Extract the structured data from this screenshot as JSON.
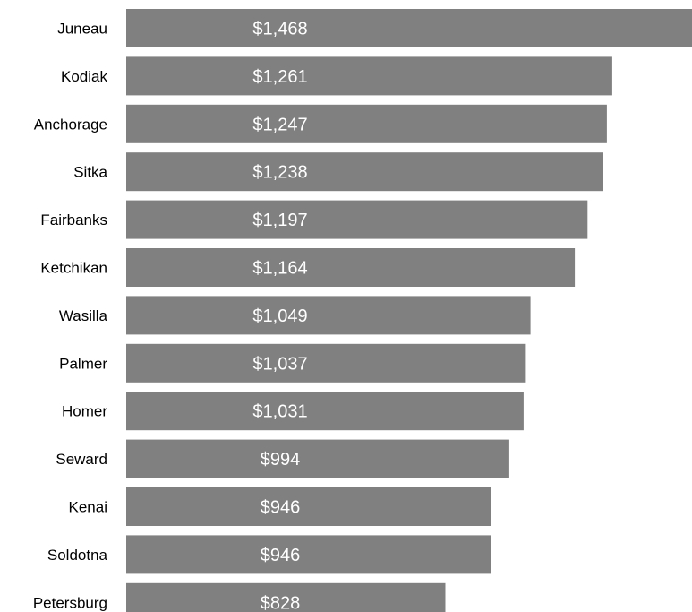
{
  "chart_data": {
    "type": "bar",
    "orientation": "horizontal",
    "title": "",
    "xlabel": "",
    "ylabel": "",
    "xlim": [
      0,
      1468
    ],
    "grid": false,
    "legend": "none",
    "categories": [
      "Juneau",
      "Kodiak",
      "Anchorage",
      "Sitka",
      "Fairbanks",
      "Ketchikan",
      "Wasilla",
      "Palmer",
      "Homer",
      "Seward",
      "Kenai",
      "Soldotna",
      "Petersburg"
    ],
    "values": [
      1468,
      1261,
      1247,
      1238,
      1197,
      1164,
      1049,
      1037,
      1031,
      994,
      946,
      946,
      828
    ],
    "data_labels": [
      "$1,468",
      "$1,261",
      "$1,247",
      "$1,238",
      "$1,197",
      "$1,164",
      "$1,049",
      "$1,037",
      "$1,031",
      "$994",
      "$946",
      "$946",
      "$828"
    ],
    "colors": {
      "bar": "#808080",
      "value_text": "#ffffff",
      "category_text": "#000000"
    }
  }
}
